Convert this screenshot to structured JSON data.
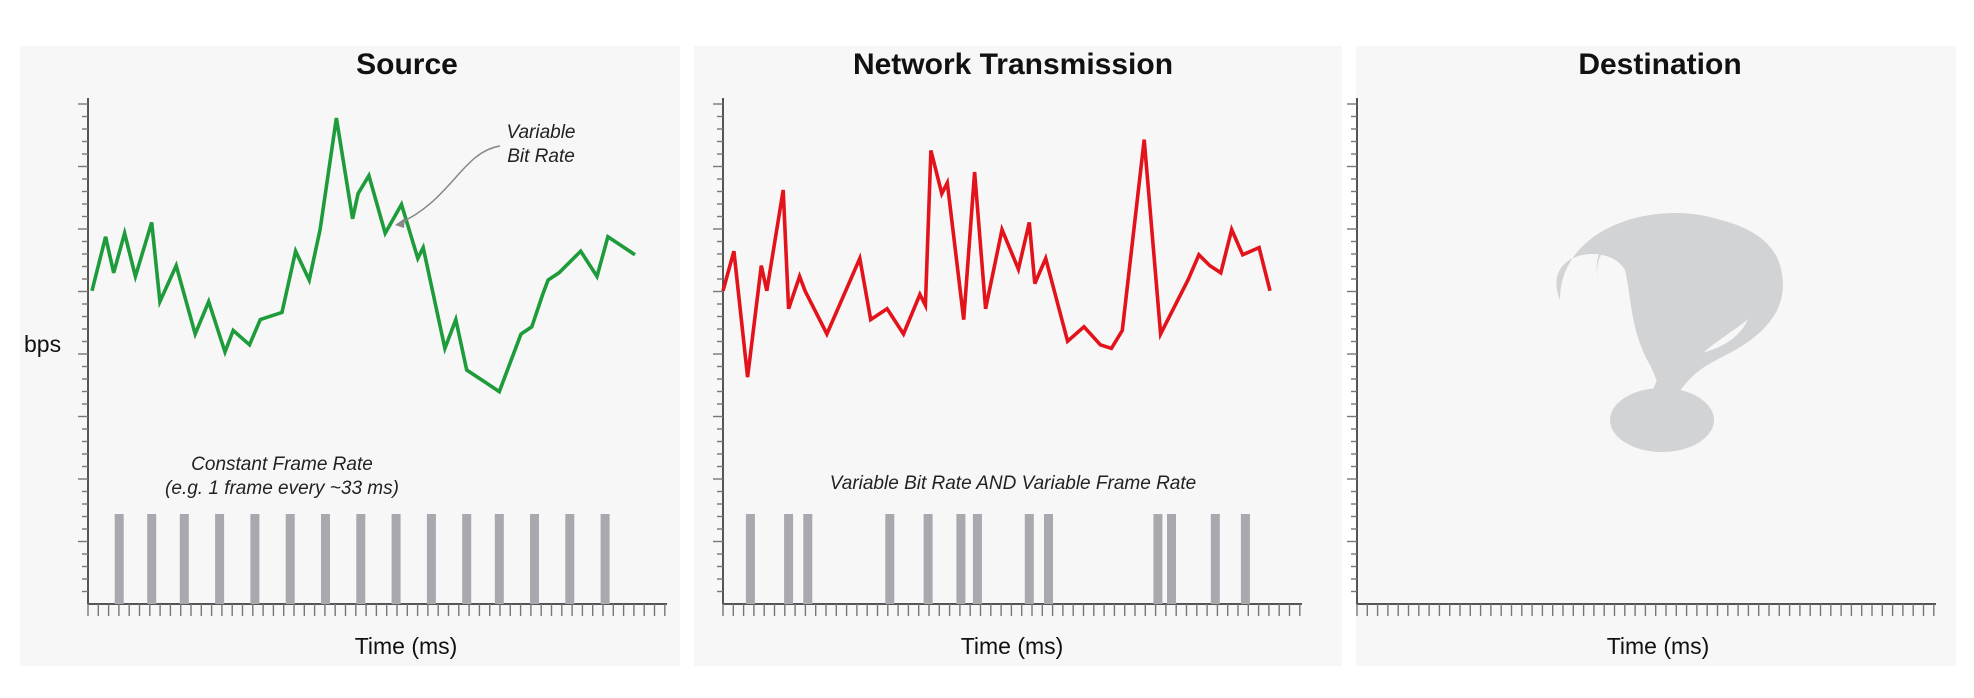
{
  "panels": [
    {
      "title": "Source",
      "xlabel": "Time (ms)",
      "ylabel": "bps"
    },
    {
      "title": "Network Transmission",
      "xlabel": "Time (ms)"
    },
    {
      "title": "Destination",
      "xlabel": "Time (ms)"
    }
  ],
  "annotations": {
    "vbr_line1": "Variable",
    "vbr_line2": "Bit Rate",
    "cfr_line1": "Constant Frame Rate",
    "cfr_line2": "(e.g. 1 frame every ~33 ms)",
    "vbr_vfr": "Variable Bit Rate AND Variable Frame Rate"
  },
  "colors": {
    "source_line": "#1e9b3a",
    "network_line": "#e3131b",
    "frame_bar": "#a7a9ae",
    "question_mark": "#d2d3d5",
    "axis": "#555555"
  },
  "destination_icon": "question-mark-icon",
  "chart_data": [
    {
      "type": "line",
      "series": [
        {
          "x": [
            0,
            0.025,
            0.04,
            0.06,
            0.08,
            0.11,
            0.125,
            0.155,
            0.19,
            0.215,
            0.245,
            0.26,
            0.29,
            0.31,
            0.35,
            0.375,
            0.4,
            0.42,
            0.45,
            0.48,
            0.49,
            0.51,
            0.54,
            0.57,
            0.6,
            0.61,
            0.65,
            0.67,
            0.69,
            0.72,
            0.75,
            0.79,
            0.81,
            0.83,
            0.84,
            0.86,
            0.9,
            0.93,
            0.95,
            1.0
          ],
          "y": [
            0.52,
            0.67,
            0.57,
            0.68,
            0.56,
            0.71,
            0.49,
            0.59,
            0.4,
            0.49,
            0.35,
            0.41,
            0.37,
            0.44,
            0.46,
            0.63,
            0.55,
            0.69,
            1.0,
            0.72,
            0.79,
            0.84,
            0.68,
            0.76,
            0.61,
            0.64,
            0.36,
            0.44,
            0.3,
            0.27,
            0.24,
            0.4,
            0.42,
            0.51,
            0.55,
            0.57,
            0.63,
            0.56,
            0.67,
            0.62
          ]
        }
      ],
      "frames": [
        0.05,
        0.11,
        0.17,
        0.235,
        0.3,
        0.365,
        0.43,
        0.495,
        0.56,
        0.625,
        0.69,
        0.75,
        0.815,
        0.88,
        0.945
      ]
    },
    {
      "type": "line",
      "series": [
        {
          "x": [
            0,
            0.02,
            0.045,
            0.07,
            0.08,
            0.11,
            0.12,
            0.14,
            0.15,
            0.19,
            0.25,
            0.27,
            0.3,
            0.33,
            0.36,
            0.37,
            0.38,
            0.4,
            0.41,
            0.44,
            0.46,
            0.48,
            0.51,
            0.54,
            0.56,
            0.57,
            0.59,
            0.63,
            0.66,
            0.69,
            0.71,
            0.73,
            0.77,
            0.8,
            0.85,
            0.87,
            0.89,
            0.91,
            0.93,
            0.95,
            0.98,
            1.0
          ],
          "y": [
            0.52,
            0.63,
            0.28,
            0.59,
            0.52,
            0.8,
            0.47,
            0.56,
            0.52,
            0.4,
            0.61,
            0.44,
            0.47,
            0.4,
            0.51,
            0.48,
            0.91,
            0.79,
            0.82,
            0.44,
            0.85,
            0.47,
            0.69,
            0.58,
            0.71,
            0.54,
            0.61,
            0.38,
            0.42,
            0.37,
            0.36,
            0.41,
            0.94,
            0.4,
            0.55,
            0.62,
            0.59,
            0.57,
            0.69,
            0.62,
            0.64,
            0.52
          ]
        }
      ],
      "frames": [
        0.05,
        0.12,
        0.155,
        0.305,
        0.375,
        0.435,
        0.465,
        0.56,
        0.595,
        0.795,
        0.82,
        0.9,
        0.955
      ]
    },
    {
      "type": "line",
      "series": []
    }
  ]
}
